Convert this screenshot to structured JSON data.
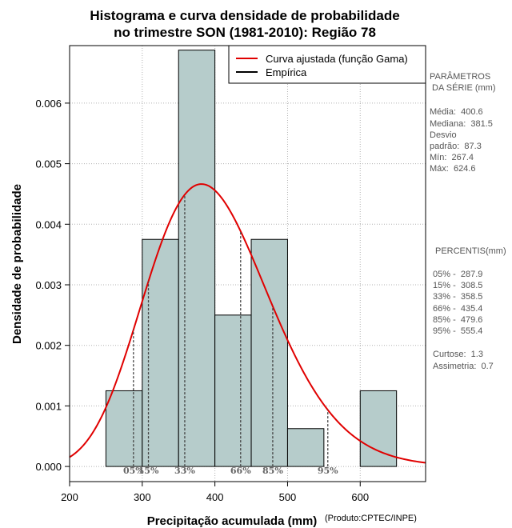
{
  "chart_data": {
    "type": "bar",
    "title_line1": "Histograma e curva densidade de probabilidade",
    "title_line2": "no trimestre SON (1981-2010): Região 78",
    "xlabel": "Precipitação acumulada (mm)",
    "ylabel": "Densidade de probabilidade",
    "credit": "(Produto:CPTEC/INPE)",
    "xlim": [
      200,
      690
    ],
    "ylim": [
      -0.00025,
      0.00695
    ],
    "x_ticks": [
      200,
      300,
      400,
      500,
      600
    ],
    "y_ticks": [
      0.0,
      0.001,
      0.002,
      0.003,
      0.004,
      0.005,
      0.006
    ],
    "y_tick_labels": [
      "0.000",
      "0.001",
      "0.002",
      "0.003",
      "0.004",
      "0.005",
      "0.006"
    ],
    "histogram": {
      "bin_edges": [
        250,
        300,
        350,
        400,
        450,
        500,
        550,
        600,
        650
      ],
      "densities": [
        0.00125,
        0.00375,
        0.006875,
        0.0025,
        0.00375,
        0.000625,
        0.0,
        0.00125
      ],
      "fill_color": "#b6cccb",
      "edge_color": "#000000"
    },
    "fitted_curve": {
      "name": "Curva ajustada (função Gama)",
      "color": "#e00000",
      "distribution": "gamma",
      "shape": 21.06,
      "scale": 19.02
    },
    "empirical": {
      "name": "Empírica",
      "color": "#000000"
    },
    "percentiles": [
      {
        "label": "05%",
        "value": 287.9
      },
      {
        "label": "15%",
        "value": 308.5
      },
      {
        "label": "33%",
        "value": 358.5
      },
      {
        "label": "66%",
        "value": 435.4
      },
      {
        "label": "85%",
        "value": 479.6
      },
      {
        "label": "95%",
        "value": 555.4
      }
    ],
    "legend_position": "top-right"
  },
  "parameters": {
    "heading_line1": "PARÂMETROS",
    "heading_line2": " DA SÉRIE (mm)",
    "lines": [
      "Média:  400.6",
      "Mediana:  381.5",
      "Desvio",
      "padrão:  87.3",
      "Mín:  267.4",
      "Máx:  624.6"
    ]
  },
  "percentile_panel": {
    "heading": "PERCENTIS(mm)",
    "lines": [
      "05% -  287.9",
      "15% -  308.5",
      "33% -  358.5",
      "66% -  435.4",
      "85% -  479.6",
      "95% -  555.4"
    ]
  },
  "shape_stats": {
    "lines": [
      "Curtose:  1.3",
      "Assimetria:  0.7"
    ]
  }
}
